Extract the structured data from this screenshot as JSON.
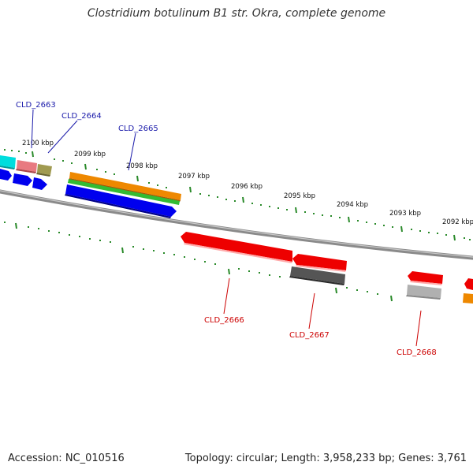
{
  "title": "Clostridium botulinum B1 str. Okra, complete genome",
  "footer": {
    "accession": "Accession: NC_010516",
    "summary": "Topology: circular; Length: 3,958,233 bp; Genes: 3,761"
  },
  "ticks": [
    "2100 kbp",
    "2099 kbp",
    "2098 kbp",
    "2097 kbp",
    "2096 kbp",
    "2095 kbp",
    "2094 kbp",
    "2093 kbp",
    "2092 kbp"
  ],
  "gene_labels_forward": [
    "CLD_2663",
    "CLD_2664",
    "CLD_2665"
  ],
  "gene_labels_reverse": [
    "CLD_2666",
    "CLD_2667",
    "CLD_2668"
  ],
  "colors": {
    "forward_label": "#1a1aaa",
    "reverse_label": "#cc0000",
    "tick": "#2a8a2a",
    "backbone": "#808080",
    "blue": "#0000ee",
    "red": "#ee0000",
    "green": "#33bb33",
    "orange": "#ee8800",
    "cyan": "#00dddd",
    "pink": "#e87a80",
    "khaki": "#a09a50",
    "dark_gray": "#555555",
    "light_gray": "#b0b0b0"
  }
}
